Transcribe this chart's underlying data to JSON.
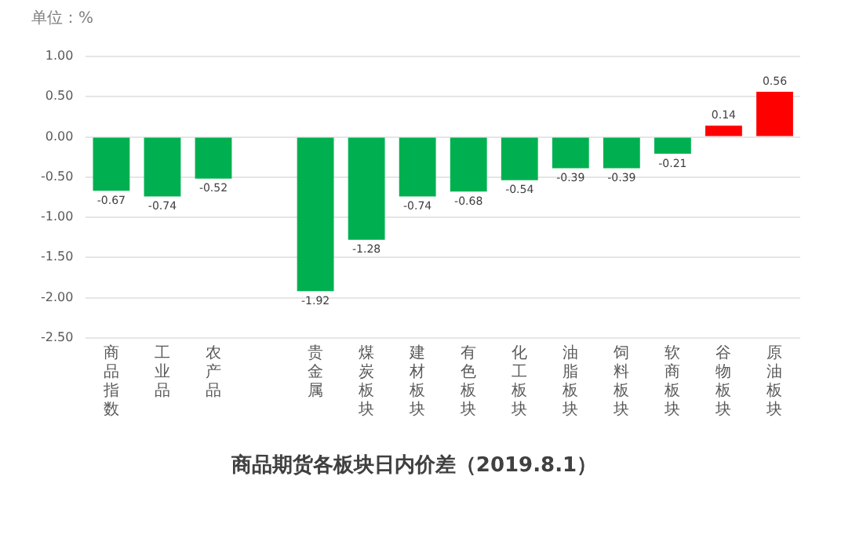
{
  "chart_data": {
    "type": "bar",
    "title": "商品期货各板块日内价差（2019.8.1）",
    "ylabel": "单位：%",
    "categories": [
      "商品指数",
      "工业品",
      "农产品",
      null,
      "贵金属",
      "煤炭板块",
      "建材板块",
      "有色板块",
      "化工板块",
      "油脂板块",
      "饲料板块",
      "软商板块",
      "谷物板块",
      "原油板块"
    ],
    "values": [
      -0.67,
      -0.74,
      -0.52,
      null,
      -1.92,
      -1.28,
      -0.74,
      -0.68,
      -0.54,
      -0.39,
      -0.39,
      -0.21,
      0.14,
      0.56
    ],
    "colors": [
      "#00b050",
      "#00b050",
      "#00b050",
      "#00b050",
      "#00b050",
      "#00b050",
      "#00b050",
      "#00b050",
      "#00b050",
      "#00b050",
      "#00b050",
      "#00b050",
      "#ff0000",
      "#ff0000"
    ],
    "ylim": [
      -2.5,
      1.0
    ],
    "yticks": [
      {
        "value": -2.5,
        "label": "-2.50"
      },
      {
        "value": -2.0,
        "label": "-2.00"
      },
      {
        "value": -1.5,
        "label": "-1.50"
      },
      {
        "value": -1.0,
        "label": "-1.00"
      },
      {
        "value": -0.5,
        "label": "-0.50"
      },
      {
        "value": 0,
        "label": "0.00"
      },
      {
        "value": 0.5,
        "label": "0.50"
      },
      {
        "value": 1.0,
        "label": "1.00"
      }
    ],
    "grid": "y",
    "data_labels": true,
    "legend": false
  }
}
